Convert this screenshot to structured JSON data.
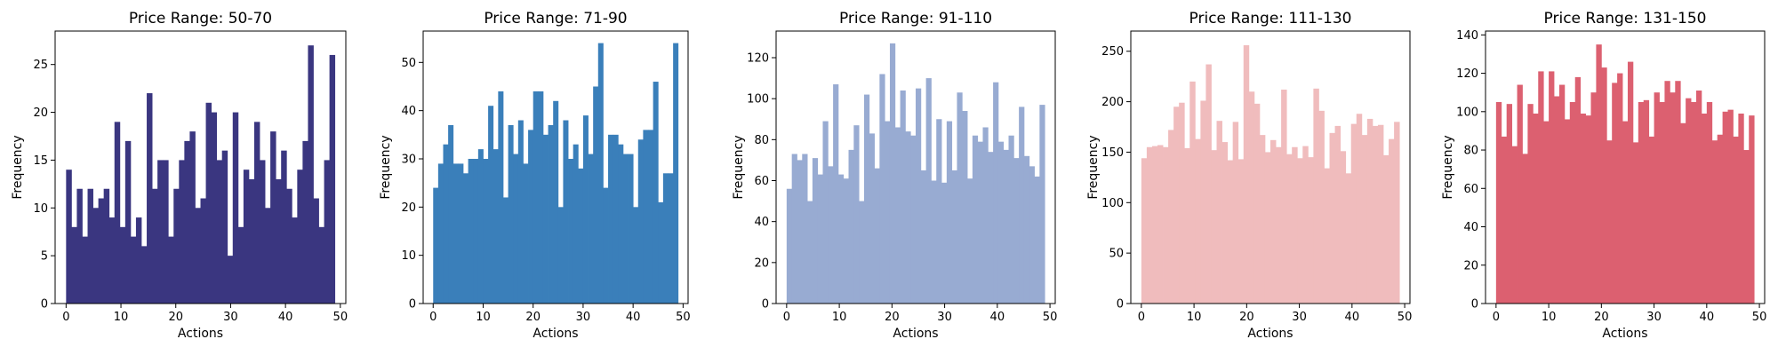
{
  "chart_data": [
    {
      "type": "bar",
      "title": "Price Range: 50-70",
      "xlabel": "Actions",
      "ylabel": "Frequency",
      "color": "#3a3680",
      "xlim": [
        -2,
        51
      ],
      "ylim": [
        0,
        28.5
      ],
      "xticks": [
        0,
        10,
        20,
        30,
        40,
        50
      ],
      "yticks": [
        0,
        5,
        10,
        15,
        20,
        25
      ],
      "values": [
        14,
        8,
        12,
        7,
        12,
        10,
        11,
        12,
        9,
        19,
        8,
        17,
        7,
        9,
        6,
        22,
        12,
        15,
        15,
        7,
        12,
        15,
        17,
        18,
        10,
        11,
        21,
        20,
        15,
        16,
        5,
        20,
        8,
        14,
        13,
        19,
        15,
        10,
        18,
        13,
        16,
        12,
        9,
        14,
        17,
        27,
        11,
        8,
        15,
        26
      ]
    },
    {
      "type": "bar",
      "title": "Price Range: 71-90",
      "xlabel": "Actions",
      "ylabel": "Frequency",
      "color": "#3a7fba",
      "xlim": [
        -2,
        51
      ],
      "ylim": [
        0,
        56.5
      ],
      "xticks": [
        0,
        10,
        20,
        30,
        40,
        50
      ],
      "yticks": [
        0,
        10,
        20,
        30,
        40,
        50
      ],
      "values": [
        24,
        29,
        33,
        37,
        29,
        29,
        27,
        30,
        30,
        32,
        30,
        41,
        32,
        44,
        22,
        37,
        31,
        38,
        29,
        36,
        44,
        44,
        35,
        37,
        42,
        20,
        38,
        30,
        33,
        28,
        39,
        31,
        45,
        54,
        24,
        35,
        35,
        33,
        31,
        31,
        20,
        34,
        36,
        36,
        46,
        21,
        27,
        27,
        54
      ]
    },
    {
      "type": "bar",
      "title": "Price Range: 91-110",
      "xlabel": "Actions",
      "ylabel": "Frequency",
      "color": "#98abd2",
      "xlim": [
        -2,
        51
      ],
      "ylim": [
        0,
        133
      ],
      "xticks": [
        0,
        10,
        20,
        30,
        40,
        50
      ],
      "yticks": [
        0,
        20,
        40,
        60,
        80,
        100,
        120
      ],
      "values": [
        56,
        73,
        70,
        73,
        50,
        71,
        63,
        89,
        67,
        107,
        63,
        61,
        75,
        87,
        50,
        102,
        83,
        66,
        112,
        89,
        127,
        86,
        104,
        84,
        82,
        105,
        65,
        110,
        60,
        90,
        59,
        89,
        65,
        103,
        94,
        61,
        82,
        79,
        86,
        74,
        108,
        79,
        75,
        82,
        71,
        96,
        72,
        67,
        62,
        97
      ]
    },
    {
      "type": "bar",
      "title": "Price Range: 111-130",
      "xlabel": "Actions",
      "ylabel": "Frequency",
      "color": "#f0bcbd",
      "xlim": [
        -2,
        51
      ],
      "ylim": [
        0,
        270
      ],
      "xticks": [
        0,
        10,
        20,
        30,
        40,
        50
      ],
      "yticks": [
        0,
        50,
        100,
        150,
        200,
        250
      ],
      "values": [
        144,
        155,
        156,
        157,
        155,
        172,
        195,
        199,
        154,
        220,
        163,
        201,
        237,
        152,
        181,
        160,
        142,
        180,
        143,
        256,
        210,
        198,
        167,
        150,
        162,
        155,
        212,
        148,
        155,
        144,
        156,
        145,
        213,
        191,
        134,
        169,
        176,
        151,
        129,
        178,
        188,
        167,
        183,
        176,
        177,
        147,
        163,
        180
      ]
    },
    {
      "type": "bar",
      "title": "Price Range: 131-150",
      "xlabel": "Actions",
      "ylabel": "Frequency",
      "color": "#dc6070",
      "xlim": [
        -2,
        51
      ],
      "ylim": [
        0,
        142
      ],
      "xticks": [
        0,
        10,
        20,
        30,
        40,
        50
      ],
      "yticks": [
        0,
        20,
        40,
        60,
        80,
        100,
        120,
        140
      ],
      "values": [
        105,
        87,
        104,
        82,
        114,
        78,
        104,
        99,
        121,
        95,
        121,
        108,
        114,
        96,
        105,
        118,
        99,
        98,
        110,
        135,
        123,
        85,
        115,
        120,
        95,
        126,
        84,
        105,
        106,
        87,
        110,
        105,
        116,
        110,
        116,
        94,
        107,
        105,
        111,
        99,
        105,
        85,
        88,
        100,
        101,
        87,
        99,
        80,
        98
      ]
    }
  ]
}
